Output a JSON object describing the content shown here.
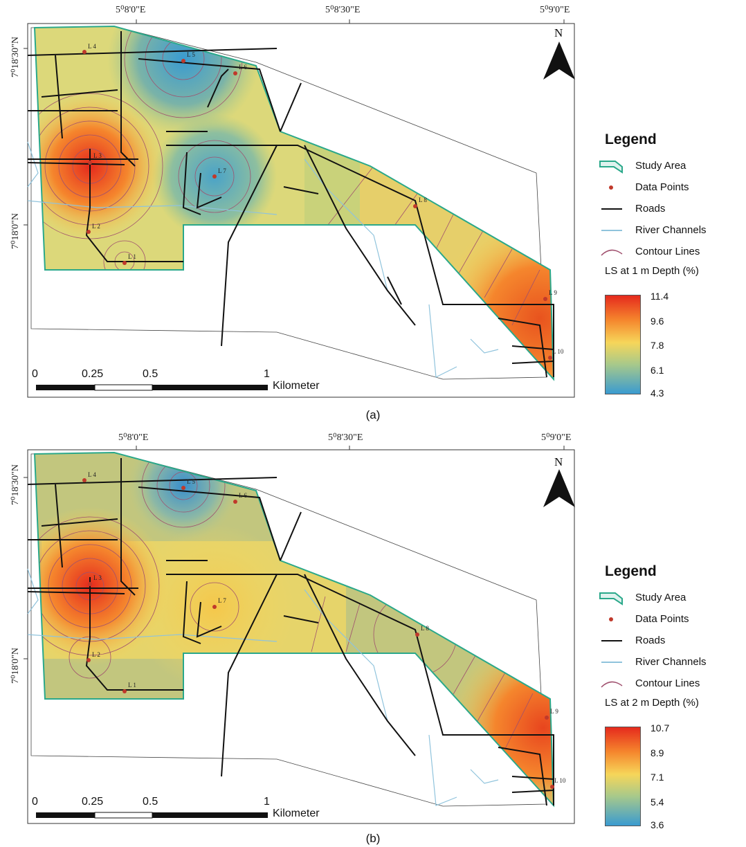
{
  "panels": [
    {
      "lon_labels": [
        "5⁰8'0\"E",
        "5⁰8'30\"E",
        "5⁰9'0\"E"
      ],
      "lat_labels": [
        "7⁰18'30\"N",
        "7⁰18'0\"N"
      ],
      "north": "N",
      "scale": {
        "ticks": [
          "0",
          "0.25",
          "0.5",
          "1"
        ],
        "unit": "Kilometer"
      },
      "points": [
        "L 1",
        "L 2",
        "L 3",
        "L 4",
        "L 5",
        "L 6",
        "L 7",
        "L 8",
        "L 9",
        "L 10"
      ],
      "legend": {
        "title": "Legend",
        "items": [
          {
            "symbol": "study-area-icon",
            "label": "Study Area"
          },
          {
            "symbol": "data-point-icon",
            "label": "Data Points"
          },
          {
            "symbol": "road-line-icon",
            "label": "Roads"
          },
          {
            "symbol": "river-line-icon",
            "label": "River Channels"
          },
          {
            "symbol": "contour-line-icon",
            "label": "Contour Lines"
          }
        ],
        "ramp_title": "LS at 1 m Depth (%)",
        "ramp_values": [
          "11.4",
          "9.6",
          "7.8",
          "6.1",
          "4.3"
        ]
      },
      "caption": "(a)"
    },
    {
      "lon_labels": [
        "5⁰8'0\"E",
        "5⁰8'30\"E",
        "5⁰9'0\"E"
      ],
      "lat_labels": [
        "7⁰18'30\"N",
        "7⁰18'0\"N"
      ],
      "north": "N",
      "scale": {
        "ticks": [
          "0",
          "0.25",
          "0.5",
          "1"
        ],
        "unit": "Kilometer"
      },
      "points": [
        "L 1",
        "L 2",
        "L 3",
        "L 4",
        "L 5",
        "L 6",
        "L 7",
        "L 8",
        "L 9",
        "L 10"
      ],
      "legend": {
        "title": "Legend",
        "items": [
          {
            "symbol": "study-area-icon",
            "label": "Study Area"
          },
          {
            "symbol": "data-point-icon",
            "label": "Data Points"
          },
          {
            "symbol": "road-line-icon",
            "label": "Roads"
          },
          {
            "symbol": "river-line-icon",
            "label": "River Channels"
          },
          {
            "symbol": "contour-line-icon",
            "label": "Contour Lines"
          }
        ],
        "ramp_title": "LS at 2 m Depth (%)",
        "ramp_values": [
          "10.7",
          "8.9",
          "7.1",
          "5.4",
          "3.6"
        ]
      },
      "caption": "(b)"
    }
  ],
  "colors": {
    "boundary": "#2aa88a",
    "data_point": "#c0392b",
    "road": "#111111",
    "river": "#8fc3dc",
    "contour": "#a0506e",
    "ramp_high": "#e52a1d",
    "ramp_low": "#3a9bd0"
  }
}
